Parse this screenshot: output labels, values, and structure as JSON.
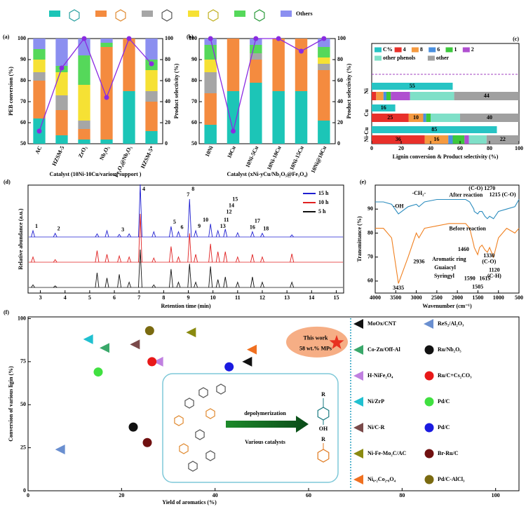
{
  "chart_data": [
    {
      "type": "bar",
      "title": "(a)",
      "xlabel": "Catalyst (10Ni-10Cu/various support )",
      "ylabel": "PEB conversion (%)",
      "y2label": "Product selectivity (%)",
      "categories": [
        "AC",
        "HZSM-5",
        "ZrO₂",
        "Nb₂O₅",
        "Fe₃O₄@Nb₂O₅",
        "HZSM-5*"
      ],
      "ylim": [
        50,
        100
      ],
      "yticks": [
        50,
        60,
        70,
        80,
        90,
        100
      ],
      "y2lim": [
        0,
        100
      ],
      "y2ticks": [
        0,
        20,
        40,
        60,
        80,
        100
      ],
      "series": [
        {
          "color": "#1cc5b7",
          "axis": "y2",
          "values": [
            24,
            8,
            4,
            4,
            50,
            12
          ]
        },
        {
          "color": "#f48b3f",
          "axis": "y2",
          "values": [
            36,
            24,
            10,
            88,
            50,
            28
          ]
        },
        {
          "color": "#a6a6a6",
          "axis": "y2",
          "values": [
            8,
            14,
            8,
            0,
            0,
            10
          ]
        },
        {
          "color": "#f6e134",
          "axis": "y2",
          "values": [
            12,
            22,
            34,
            0,
            0,
            20
          ]
        },
        {
          "color": "#55d85a",
          "axis": "y2",
          "values": [
            10,
            6,
            28,
            4,
            0,
            10
          ]
        },
        {
          "name": "Others",
          "color": "#8b8ff0",
          "axis": "y2",
          "values": [
            10,
            26,
            16,
            4,
            0,
            20
          ]
        },
        {
          "type": "line",
          "color": "#8a2be2",
          "axis": "y",
          "values": [
            56,
            86,
            100,
            72,
            100,
            88
          ]
        }
      ]
    },
    {
      "type": "bar",
      "title": "(b)",
      "xlabel": "Catalyst (xNi-yCu/Nb₂O₅@Fe₃O₄)",
      "y2label": "Product selectivity (%)",
      "categories": [
        "10Ni",
        "10Cu",
        "10Ni-5Cu",
        "10Ni-10Cu",
        "10Ni-15Cu",
        "10Ni@10Cu"
      ],
      "ylim": [
        50,
        100
      ],
      "yticks": [
        50,
        60,
        70,
        80,
        90,
        100
      ],
      "y2lim": [
        0,
        100
      ],
      "y2ticks": [
        0,
        20,
        40,
        60,
        80,
        100
      ],
      "series": [
        {
          "color": "#1cc5b7",
          "axis": "y2",
          "values": [
            18,
            50,
            58,
            50,
            50,
            22
          ]
        },
        {
          "color": "#f48b3f",
          "axis": "y2",
          "values": [
            30,
            50,
            22,
            50,
            50,
            48
          ]
        },
        {
          "color": "#a6a6a6",
          "axis": "y2",
          "values": [
            20,
            0,
            6,
            0,
            0,
            6
          ]
        },
        {
          "color": "#f6e134",
          "axis": "y2",
          "values": [
            12,
            0,
            0,
            0,
            0,
            6
          ]
        },
        {
          "color": "#55d85a",
          "axis": "y2",
          "values": [
            14,
            0,
            8,
            0,
            0,
            10
          ]
        },
        {
          "color": "#8b8ff0",
          "axis": "y2",
          "values": [
            6,
            0,
            6,
            0,
            0,
            8
          ]
        },
        {
          "type": "line",
          "color": "#8a2be2",
          "axis": "y",
          "values": [
            100,
            56,
            100,
            100,
            94,
            100
          ]
        }
      ]
    },
    {
      "type": "hbar",
      "title": "(c)",
      "xlabel": "Lignin conversion & Product selectivity (%)",
      "categories": [
        "Ni",
        "Cu",
        "Ni-Cu"
      ],
      "category_colors": [
        "#2a9d3a",
        "#1a9a8a",
        "#e0407a"
      ],
      "xlim": [
        0,
        100
      ],
      "xticks": [
        0,
        20,
        40,
        60,
        80,
        100
      ],
      "series": [
        {
          "name": "C%",
          "color": "#27c4c4",
          "values": [
            55,
            16,
            85
          ]
        },
        {
          "name": "4",
          "color": "#e8302a",
          "stacked": true,
          "values": [
            3,
            25,
            36
          ],
          "value_labels": [
            null,
            "25",
            "36"
          ]
        },
        {
          "name": "8",
          "color": "#f59a40",
          "stacked": true,
          "values": [
            5,
            10,
            16
          ],
          "value_labels": [
            null,
            "10",
            "16"
          ]
        },
        {
          "name": "6",
          "color": "#4a90e0",
          "stacked": true,
          "values": [
            2,
            2,
            3
          ]
        },
        {
          "name": "1",
          "color": "#3cc83c",
          "stacked": true,
          "values": [
            3,
            3,
            8
          ]
        },
        {
          "name": "2",
          "color": "#b050d0",
          "stacked": true,
          "values": [
            13,
            0,
            3
          ]
        },
        {
          "name": "other phenols",
          "color": "#7fe0c8",
          "stacked": true,
          "values": [
            30,
            20,
            12
          ]
        },
        {
          "name": "other",
          "color": "#a0a0a0",
          "stacked": true,
          "values": [
            44,
            40,
            22
          ],
          "value_labels": [
            "44",
            "40",
            "22"
          ]
        }
      ]
    },
    {
      "type": "peaks",
      "title": "(d)",
      "xlabel": "Retention time (min)",
      "ylabel": "Relative abundance (a.u.)",
      "xlim": [
        2.5,
        15.3
      ],
      "xticks": [
        3,
        4,
        5,
        6,
        7,
        8,
        9,
        10,
        11,
        12,
        13,
        14,
        15
      ],
      "x": [
        2.7,
        3.6,
        5.3,
        5.7,
        6.2,
        6.6,
        7.05,
        7.6,
        8.3,
        8.6,
        9.05,
        9.3,
        9.9,
        10.2,
        10.5,
        11.0,
        11.6,
        12.0,
        13.2
      ],
      "series": [
        {
          "name": "15 h",
          "color": "#1f1fd0",
          "values": [
            0.12,
            0.07,
            0.06,
            0.12,
            0.05,
            0.06,
            1.0,
            0.1,
            0.2,
            0.1,
            0.72,
            0.12,
            0.25,
            0.12,
            0.15,
            0.08,
            0.1,
            0.07,
            0.04
          ]
        },
        {
          "name": "10 h",
          "color": "#e02020",
          "values": [
            0.1,
            0.05,
            0.22,
            0.15,
            0.12,
            0.1,
            0.92,
            0.08,
            0.3,
            0.1,
            0.55,
            0.15,
            0.35,
            0.2,
            0.2,
            0.1,
            0.15,
            0.1,
            0.16
          ]
        },
        {
          "name": "5 h",
          "color": "#111111",
          "values": [
            0.05,
            0.03,
            0.28,
            0.18,
            0.25,
            0.1,
            0.72,
            0.05,
            0.35,
            0.1,
            0.45,
            0.1,
            0.4,
            0.15,
            0.2,
            0.1,
            0.2,
            0.1,
            0.1
          ]
        }
      ],
      "annotations": [
        {
          "text": "1",
          "x": 2.7
        },
        {
          "text": "2",
          "x": 3.6
        },
        {
          "text": "3",
          "x": 6.2
        },
        {
          "text": "4",
          "x": 7.05
        },
        {
          "text": "5",
          "x": 8.3
        },
        {
          "text": "6",
          "x": 8.6
        },
        {
          "text": "7",
          "x": 8.85
        },
        {
          "text": "8",
          "x": 9.05
        },
        {
          "text": "9",
          "x": 9.3
        },
        {
          "text": "10",
          "x": 9.5
        },
        {
          "text": "13",
          "x": 10.2
        },
        {
          "text": "11",
          "x": 10.35
        },
        {
          "text": "12",
          "x": 10.45
        },
        {
          "text": "14",
          "x": 10.55
        },
        {
          "text": "15",
          "x": 10.7
        },
        {
          "text": "16",
          "x": 11.4
        },
        {
          "text": "17",
          "x": 11.6
        },
        {
          "text": "18",
          "x": 11.95
        }
      ]
    },
    {
      "type": "line",
      "title": "(e)",
      "xlabel": "Wavenumber (cm⁻¹)",
      "ylabel": "Transmittance (%)",
      "xlim": [
        4000,
        500
      ],
      "xticks": [
        4000,
        3500,
        3000,
        2500,
        2000,
        1500,
        1000,
        500
      ],
      "ylim": [
        55,
        100
      ],
      "yticks": [
        60,
        70,
        80,
        90
      ],
      "x": [
        4000,
        3800,
        3600,
        3435,
        3200,
        3000,
        2936,
        2800,
        2500,
        2200,
        2000,
        1800,
        1700,
        1600,
        1590,
        1505,
        1460,
        1400,
        1330,
        1270,
        1215,
        1120,
        1000,
        800,
        600,
        500
      ],
      "series": [
        {
          "name": "After reaction",
          "color": "#2b8cbe",
          "values": [
            93,
            93,
            92,
            88,
            91,
            92,
            91,
            93,
            94,
            94,
            94,
            94,
            93,
            90,
            89,
            88,
            89,
            89,
            87,
            86,
            87,
            86,
            89,
            90,
            91,
            94
          ]
        },
        {
          "name": "Before reaction",
          "color": "#f08020",
          "values": [
            82,
            82,
            78,
            59,
            70,
            80,
            78,
            82,
            83,
            84,
            84,
            84,
            82,
            75,
            74,
            71,
            74,
            75,
            73,
            72,
            74,
            70,
            78,
            82,
            80,
            82
          ]
        }
      ],
      "annotations": [
        {
          "text": "-OH",
          "x": 3435,
          "y": 91,
          "color": "#000000"
        },
        {
          "text": "-CH₂-",
          "x": 2936,
          "y": 96.5,
          "color": "#c040c0"
        },
        {
          "text": "(C-O) 1270",
          "x": 1400,
          "y": 98.5,
          "color": "#1f4fa0"
        },
        {
          "text": "1215 (C-O)",
          "x": 900,
          "y": 95.8,
          "color": "#1f4fa0"
        },
        {
          "text": "2936",
          "x": 2936,
          "y": 68,
          "color": "#c040c0"
        },
        {
          "text": "3435",
          "x": 3435,
          "y": 57,
          "color": "#000000"
        },
        {
          "text": "1460",
          "x": 1850,
          "y": 73,
          "color": "#c040c0"
        },
        {
          "text": "1590",
          "x": 1700,
          "y": 61,
          "color": "#c040c0"
        },
        {
          "text": "1505",
          "x": 1505,
          "y": 57.5,
          "color": "#c040c0"
        },
        {
          "text": "1615",
          "x": 1330,
          "y": 61,
          "color": "#c040c0"
        },
        {
          "text": "1330",
          "x": 1230,
          "y": 70.5,
          "color": "#1a7a1a"
        },
        {
          "text": "(C-O)",
          "x": 1230,
          "y": 68,
          "color": "#1a7a1a"
        },
        {
          "text": "1120",
          "x": 1100,
          "y": 64.5,
          "color": "#1a7a1a"
        },
        {
          "text": "(C-H)",
          "x": 1100,
          "y": 62,
          "color": "#1a7a1a"
        },
        {
          "text": "Aromatic ring",
          "x": 2200,
          "y": 69,
          "color": "#c040c0"
        },
        {
          "text": "Guaiacyl",
          "x": 2300,
          "y": 65.5,
          "color": "#3070c0"
        },
        {
          "text": "Syringyl",
          "x": 2320,
          "y": 62,
          "color": "#1a7a1a"
        }
      ]
    },
    {
      "type": "scatter",
      "title": "(f)",
      "xlabel": "Yield of aromatics (%)",
      "ylabel": "Conversion of various ligin (%)",
      "xlim": [
        0,
        105
      ],
      "xticks": [
        0,
        20,
        40,
        60,
        80,
        100
      ],
      "ylim": [
        0,
        101
      ],
      "yticks": [
        0,
        25,
        50,
        75,
        100
      ],
      "series": [
        {
          "name": "MoOx/CNT",
          "color": "#111111",
          "marker": "triangle",
          "x": [
            47
          ],
          "values": [
            75
          ]
        },
        {
          "name": "ReS₂/Al₂O₃",
          "color": "#6a8fd0",
          "marker": "triangle",
          "x": [
            7
          ],
          "values": [
            24
          ]
        },
        {
          "name": "Co-Zn/Off-Al",
          "color": "#3aa86a",
          "marker": "triangle",
          "x": [
            16.5
          ],
          "values": [
            83
          ]
        },
        {
          "name": "Ru/Nb₂O₅",
          "color": "#111111",
          "marker": "circle",
          "x": [
            22.5
          ],
          "values": [
            37
          ]
        },
        {
          "name": "H-NiFe₂O₄",
          "color": "#c080e0",
          "marker": "triangle",
          "x": [
            28
          ],
          "values": [
            75
          ]
        },
        {
          "name": "Ru/C+Cs₂CO₃",
          "color": "#e81818",
          "marker": "circle",
          "x": [
            26.5
          ],
          "values": [
            75
          ]
        },
        {
          "name": "Ni/ZrP",
          "color": "#20c0d0",
          "marker": "triangle",
          "x": [
            13
          ],
          "values": [
            88
          ]
        },
        {
          "name": "Pd/C",
          "color": "#40e040",
          "marker": "circle",
          "x": [
            15
          ],
          "values": [
            69
          ]
        },
        {
          "name": "Ni/C-R",
          "color": "#7a4a4a",
          "marker": "triangle",
          "x": [
            23
          ],
          "values": [
            85
          ]
        },
        {
          "name": "Pd/C",
          "color": "#1a1ae0",
          "marker": "circle",
          "x": [
            43
          ],
          "values": [
            72
          ]
        },
        {
          "name": "Ni-Fe-Mo₂C/AC",
          "color": "#8a8a10",
          "marker": "triangle",
          "x": [
            35
          ],
          "values": [
            92
          ]
        },
        {
          "name": "Br-Ru/C",
          "color": "#701010",
          "marker": "circle",
          "x": [
            25.5
          ],
          "values": [
            28
          ]
        },
        {
          "name": "Ni₀.₂Co₂.₈O₄",
          "color": "#f07020",
          "marker": "triangle",
          "x": [
            48
          ],
          "values": [
            82
          ]
        },
        {
          "name": "Pd/C-AlCl₃",
          "color": "#7a6a10",
          "marker": "circle",
          "x": [
            26
          ],
          "values": [
            93
          ]
        },
        {
          "name": "This work",
          "color": "#e83020",
          "marker": "star",
          "x": [
            66
          ],
          "values": [
            86
          ]
        }
      ],
      "annotations": [
        "58 wt.% MPs",
        "depolymerization",
        "Various catalysts",
        "R",
        "OH",
        "R"
      ]
    }
  ]
}
